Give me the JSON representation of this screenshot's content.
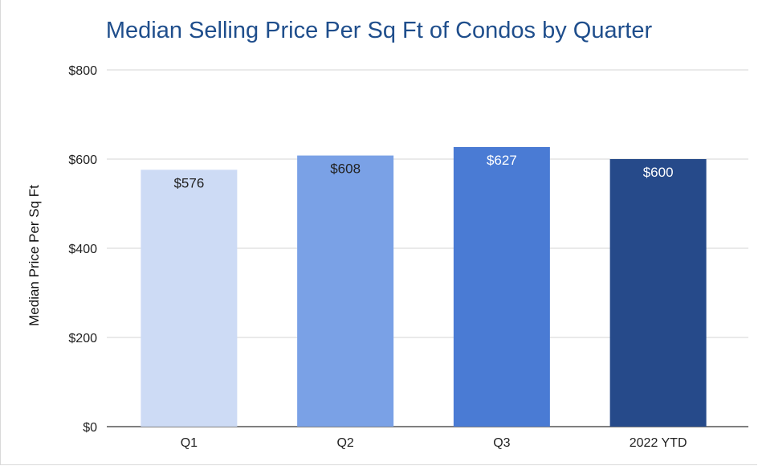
{
  "chart_data": {
    "type": "bar",
    "title": "Median Selling Price Per Sq Ft of Condos by Quarter",
    "xlabel": "",
    "ylabel": "Median Price Per Sq Ft",
    "categories": [
      "Q1",
      "Q2",
      "Q3",
      "2022 YTD"
    ],
    "values": [
      576,
      608,
      627,
      600
    ],
    "data_labels": [
      "$576",
      "$608",
      "$627",
      "$600"
    ],
    "ylim": [
      0,
      800
    ],
    "yticks": [
      0,
      200,
      400,
      600,
      800
    ],
    "ytick_labels": [
      "$0",
      "$200",
      "$400",
      "$600",
      "$800"
    ],
    "bar_colors": [
      "#cddbf5",
      "#7aa1e6",
      "#4a7bd4",
      "#264a8a"
    ],
    "label_colors": [
      "#222222",
      "#222222",
      "#ffffff",
      "#ffffff"
    ],
    "title_color": "#1f4e8c",
    "grid": true
  }
}
